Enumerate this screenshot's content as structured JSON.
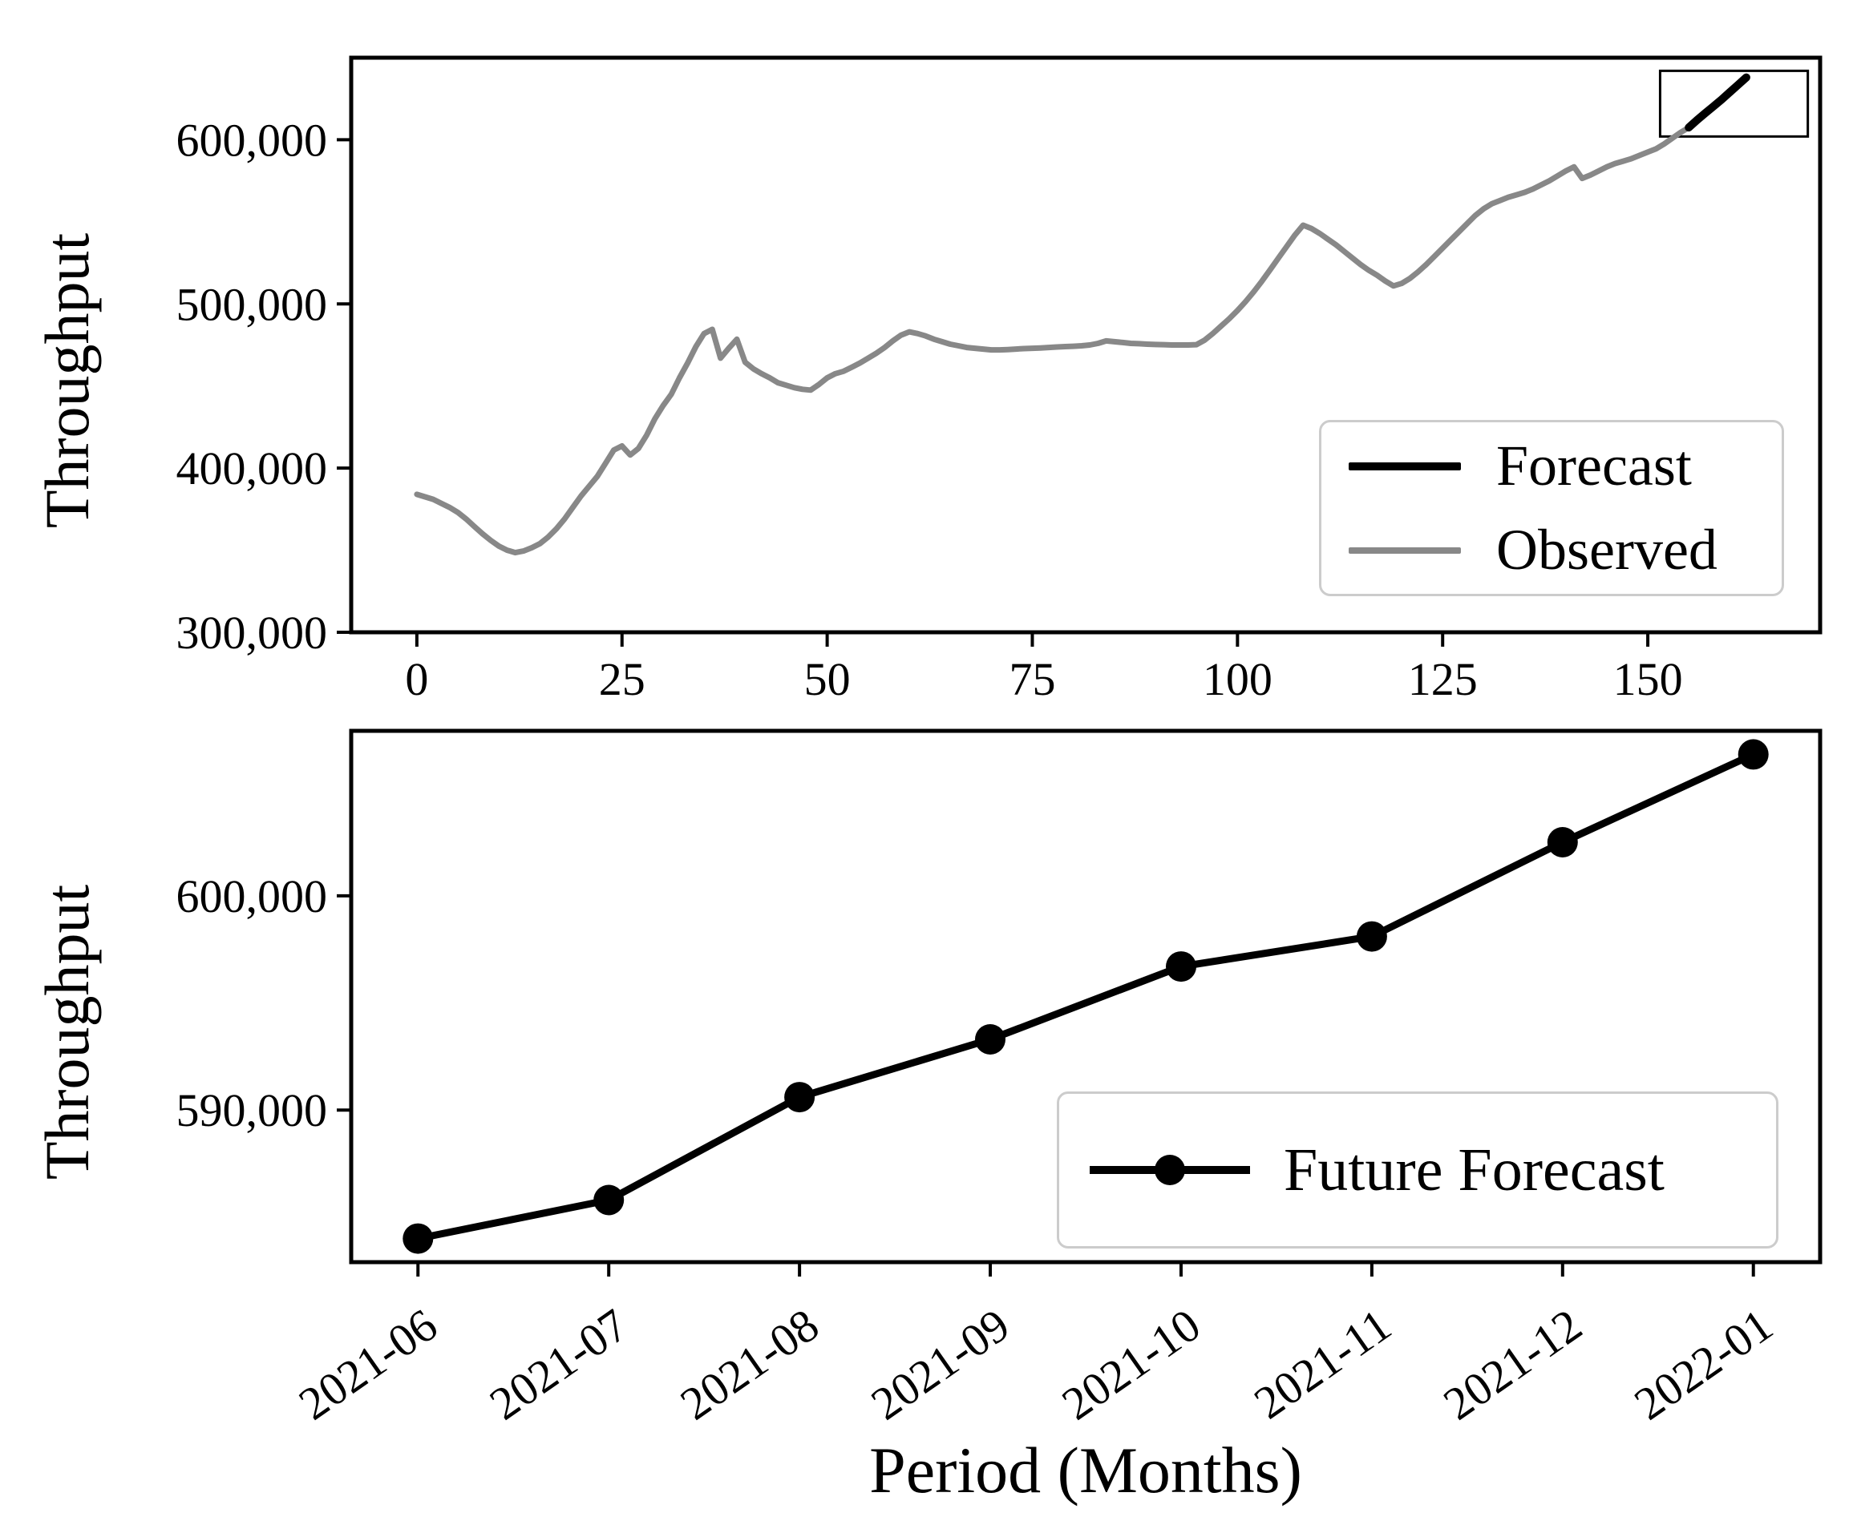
{
  "figure": {
    "background": "#ffffff",
    "colors": {
      "observed": "#888888",
      "forecast": "#000000",
      "spine": "#000000",
      "legend_border": "#cccccc"
    }
  },
  "chart_data": [
    {
      "id": "throughput-history",
      "type": "line",
      "title": "",
      "xlabel": "",
      "ylabel": "Throughput",
      "xlim": [
        -8,
        171
      ],
      "ylim": [
        300000,
        650000
      ],
      "grid": false,
      "x_ticks": [
        0,
        25,
        50,
        75,
        100,
        125,
        150
      ],
      "x_tick_labels": [
        "0",
        "25",
        "50",
        "75",
        "100",
        "125",
        "150"
      ],
      "y_ticks": [
        300000,
        400000,
        500000,
        600000
      ],
      "y_tick_labels": [
        "300,000",
        "400,000",
        "500,000",
        "600,000"
      ],
      "inset_box": {
        "x0": 151.5,
        "x1": 169.5,
        "y0": 602000,
        "y1": 642000
      },
      "legend": {
        "position": "lower right",
        "entries": [
          {
            "label": "Forecast",
            "color": "#000000"
          },
          {
            "label": "Observed",
            "color": "#888888"
          }
        ]
      },
      "series": [
        {
          "name": "Observed",
          "color": "#888888",
          "width": 7,
          "x_start": 0,
          "x_step": 1,
          "values": [
            384000,
            382500,
            381000,
            378500,
            376000,
            373000,
            369000,
            364500,
            360000,
            356000,
            352500,
            350000,
            348500,
            349500,
            351500,
            354000,
            358000,
            363000,
            369000,
            376000,
            383000,
            389000,
            395000,
            403000,
            411000,
            413500,
            408000,
            412000,
            420000,
            430000,
            438000,
            445000,
            455000,
            464000,
            474000,
            482000,
            484500,
            467000,
            473000,
            478500,
            464500,
            460500,
            457500,
            455000,
            452000,
            450500,
            449000,
            448000,
            447500,
            451000,
            455000,
            457500,
            459000,
            461500,
            464000,
            467000,
            470000,
            473500,
            477500,
            481000,
            483000,
            482000,
            480500,
            478500,
            477000,
            475500,
            474500,
            473500,
            473000,
            472500,
            472000,
            472000,
            472200,
            472500,
            472800,
            473000,
            473200,
            473500,
            473800,
            474000,
            474200,
            474500,
            475000,
            476000,
            477500,
            477000,
            476500,
            476000,
            475800,
            475500,
            475300,
            475200,
            475000,
            475000,
            475000,
            475200,
            478000,
            482000,
            486500,
            491000,
            496000,
            501500,
            507500,
            514000,
            521000,
            528000,
            535000,
            542000,
            548000,
            546000,
            543000,
            539500,
            536000,
            532000,
            528000,
            524000,
            520500,
            517500,
            514000,
            511000,
            512500,
            515500,
            519500,
            524000,
            529000,
            534000,
            539000,
            544000,
            549000,
            554000,
            558000,
            561000,
            563000,
            565000,
            566500,
            568000,
            570000,
            572500,
            575000,
            578000,
            581000,
            583500,
            576500,
            578500,
            581000,
            583500,
            585500,
            587000,
            588500,
            590500,
            592500,
            594500,
            597500,
            601000,
            604500,
            607500
          ]
        },
        {
          "name": "Forecast",
          "color": "#000000",
          "width": 10,
          "x_start": 155,
          "x_step": 1,
          "values": [
            607500,
            612000,
            616200,
            620300,
            624500,
            629000,
            633500,
            638000
          ]
        }
      ]
    },
    {
      "id": "future-forecast",
      "type": "line",
      "title": "",
      "xlabel": "Period (Months)",
      "ylabel": "Throughput",
      "categories": [
        "2021-06",
        "2021-07",
        "2021-08",
        "2021-09",
        "2021-10",
        "2021-11",
        "2021-12",
        "2022-01"
      ],
      "ylim": [
        582900,
        607700
      ],
      "x_margin": 0.35,
      "grid": false,
      "y_ticks": [
        590000,
        600000
      ],
      "y_tick_labels": [
        "590,000",
        "600,000"
      ],
      "legend": {
        "position": "lower right",
        "entries": [
          {
            "label": "Future Forecast",
            "color": "#000000",
            "marker": "circle"
          }
        ]
      },
      "series": [
        {
          "name": "Future Forecast",
          "color": "#000000",
          "width": 9,
          "marker": "circle",
          "marker_radius": 19,
          "values": [
            584000,
            585800,
            590600,
            593300,
            596700,
            598100,
            602500,
            606600
          ]
        }
      ]
    }
  ]
}
